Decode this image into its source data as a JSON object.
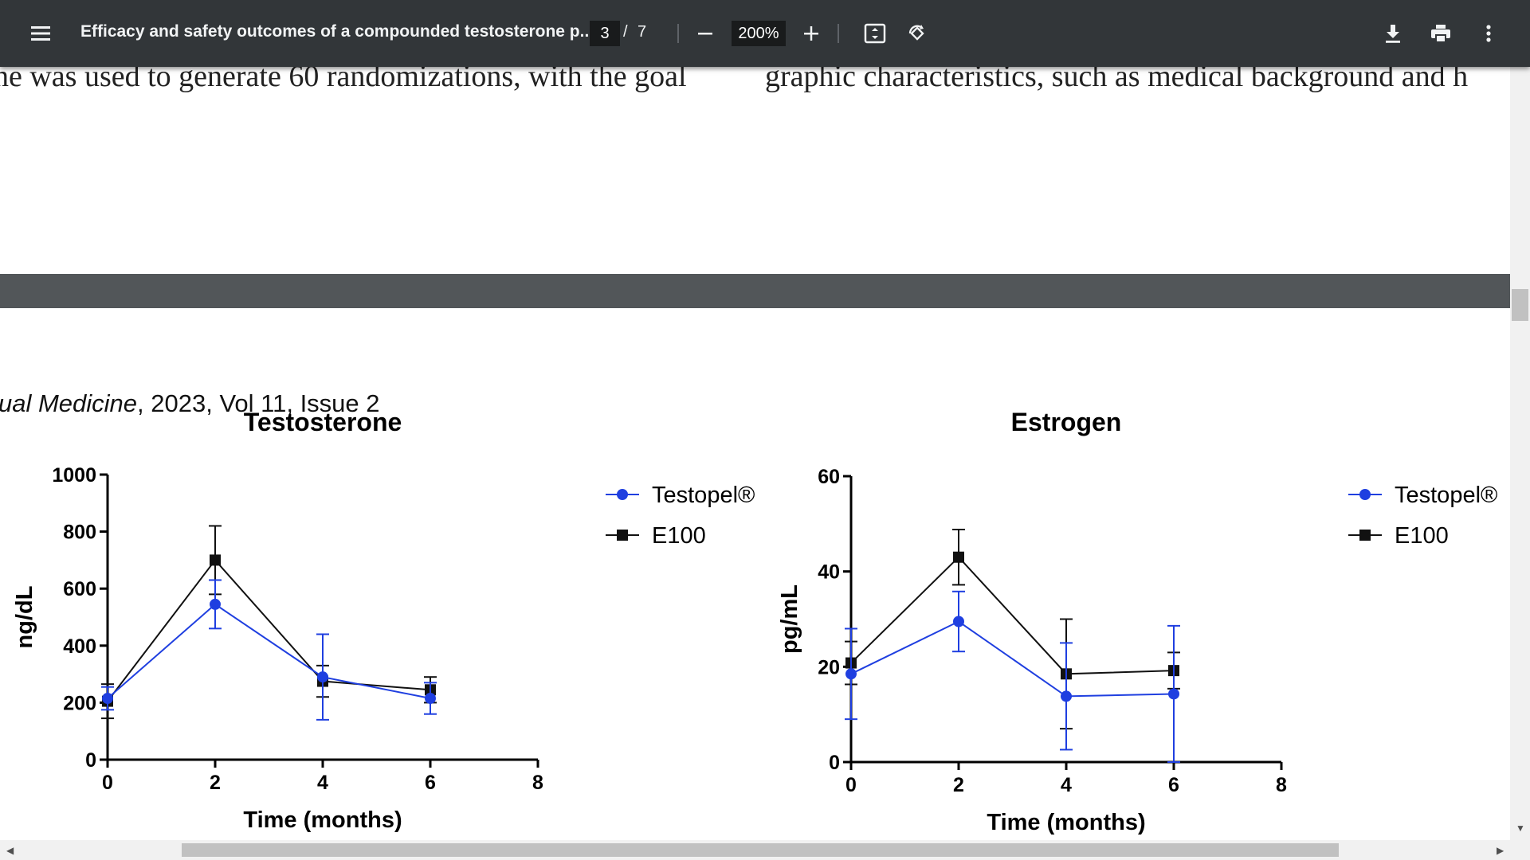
{
  "toolbar": {
    "title": "Efficacy and safety outcomes of a compounded testosterone p...",
    "page_current": "3",
    "page_separator": "/",
    "page_total": "7",
    "zoom": "200%",
    "icons": [
      "menu-icon",
      "zoom-out-icon",
      "zoom-in-icon",
      "fit-page-icon",
      "rotate-icon",
      "download-icon",
      "print-icon",
      "more-vert-icon"
    ]
  },
  "document": {
    "prev_text_left": "ne was used to generate 60 randomizations, with the goal",
    "prev_text_right": "graphic characteristics, such as medical background and h",
    "journal_italic": "ual Medicine",
    "journal_rest": ", 2023, Vol 11, Issue 2"
  },
  "chart_data": [
    {
      "type": "line",
      "title": "Testosterone",
      "xlabel": "Time (months)",
      "ylabel": "ng/dL",
      "xlim": [
        0,
        8
      ],
      "ylim": [
        0,
        1000
      ],
      "x_ticks": [
        "0",
        "2",
        "4",
        "6",
        "8"
      ],
      "y_ticks": [
        "0",
        "200",
        "400",
        "600",
        "800",
        "1000"
      ],
      "legend_position": "right",
      "series": [
        {
          "name": "Testopel®",
          "color": "#1f3fe0",
          "marker": "circle",
          "x": [
            0,
            2,
            4,
            6
          ],
          "y": [
            215,
            545,
            290,
            215
          ],
          "err": [
            40,
            85,
            150,
            55
          ]
        },
        {
          "name": "E100",
          "color": "#111111",
          "marker": "square",
          "x": [
            0,
            2,
            4,
            6
          ],
          "y": [
            205,
            700,
            275,
            245
          ],
          "err": [
            60,
            120,
            55,
            45
          ]
        }
      ]
    },
    {
      "type": "line",
      "title": "Estrogen",
      "xlabel": "Time (months)",
      "ylabel": "pg/mL",
      "xlim": [
        0,
        8
      ],
      "ylim": [
        0,
        60
      ],
      "x_ticks": [
        "0",
        "2",
        "4",
        "6",
        "8"
      ],
      "y_ticks": [
        "0",
        "20",
        "40",
        "60"
      ],
      "legend_position": "right",
      "series": [
        {
          "name": "Testopel®",
          "color": "#1f3fe0",
          "marker": "circle",
          "x": [
            0,
            2,
            4,
            6
          ],
          "y": [
            18.5,
            29.5,
            13.8,
            14.3
          ],
          "err": [
            9.5,
            6.3,
            11.2,
            14.3
          ]
        },
        {
          "name": "E100",
          "color": "#111111",
          "marker": "square",
          "x": [
            0,
            2,
            4,
            6
          ],
          "y": [
            20.8,
            43,
            18.5,
            19.2
          ],
          "err": [
            4.5,
            5.8,
            11.5,
            3.8
          ]
        }
      ]
    }
  ]
}
